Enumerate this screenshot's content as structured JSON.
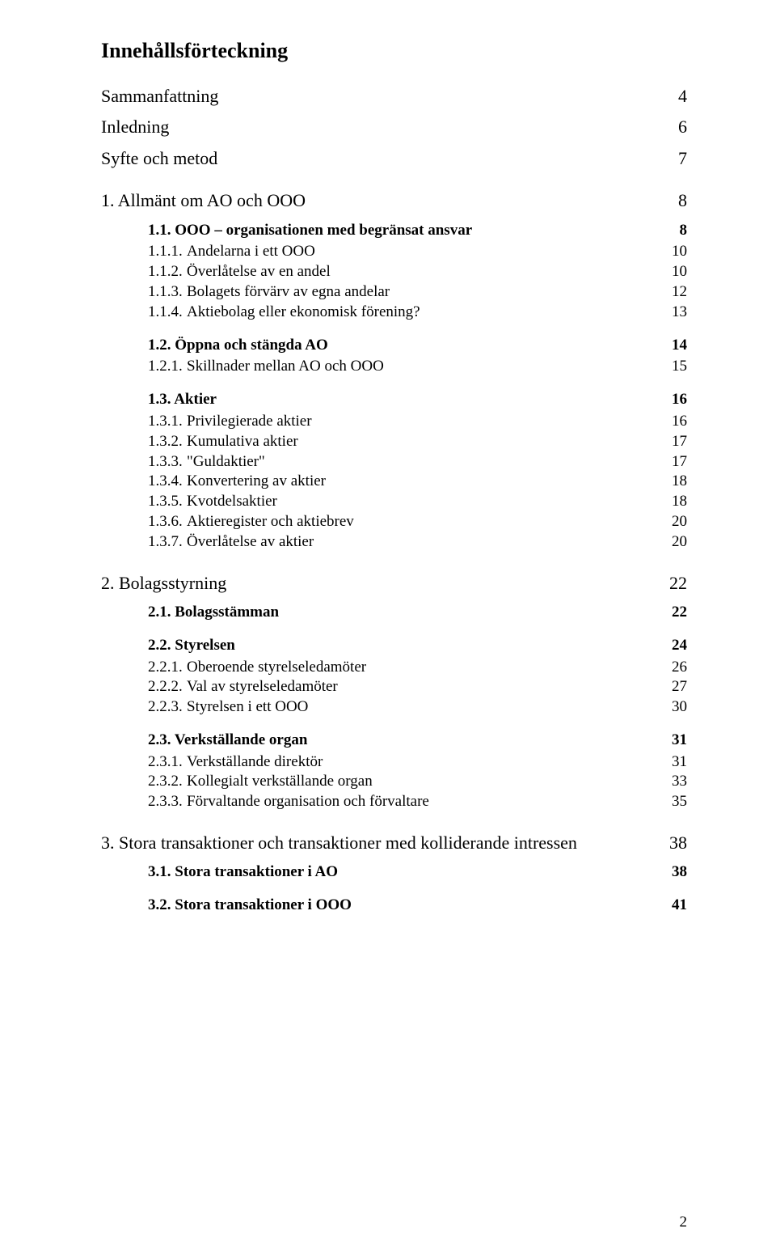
{
  "title": "Innehållsförteckning",
  "footer_page_number": "2",
  "toc": {
    "sammanfattning": {
      "label": "Sammanfattning",
      "page": "4"
    },
    "inledning": {
      "label": "Inledning",
      "page": "6"
    },
    "syfte": {
      "label": "Syfte och metod",
      "page": "7"
    },
    "s1": {
      "label": "1.  Allmänt om AO och OOO",
      "page": "8"
    },
    "s1_1": {
      "no": "1.1.",
      "text": "OOO – organisationen med begränsat ansvar",
      "page": "8",
      "bold": true
    },
    "s1_1_1": {
      "no": "1.1.1.",
      "text": "Andelarna i ett OOO",
      "page": "10"
    },
    "s1_1_2": {
      "no": "1.1.2.",
      "text": "Överlåtelse av en andel",
      "page": "10"
    },
    "s1_1_3": {
      "no": "1.1.3.",
      "text": "Bolagets förvärv av egna andelar",
      "page": "12"
    },
    "s1_1_4": {
      "no": "1.1.4.",
      "text": "Aktiebolag eller ekonomisk förening?",
      "page": "13"
    },
    "s1_2": {
      "no": "1.2.",
      "text": "Öppna och stängda AO",
      "page": "14",
      "bold": true
    },
    "s1_2_1": {
      "no": "1.2.1.",
      "text": "Skillnader mellan AO och OOO",
      "page": "15"
    },
    "s1_3": {
      "no": "1.3.",
      "text": "Aktier",
      "page": "16",
      "bold": true
    },
    "s1_3_1": {
      "no": "1.3.1.",
      "text": "Privilegierade aktier",
      "page": "16"
    },
    "s1_3_2": {
      "no": "1.3.2.",
      "text": "Kumulativa aktier",
      "page": "17"
    },
    "s1_3_3": {
      "no": "1.3.3.",
      "text": "\"Guldaktier\"",
      "page": "17"
    },
    "s1_3_4": {
      "no": "1.3.4.",
      "text": "Konvertering av aktier",
      "page": "18"
    },
    "s1_3_5": {
      "no": "1.3.5.",
      "text": "Kvotdelsaktier",
      "page": "18"
    },
    "s1_3_6": {
      "no": "1.3.6.",
      "text": "Aktieregister och aktiebrev",
      "page": "20"
    },
    "s1_3_7": {
      "no": "1.3.7.",
      "text": "Överlåtelse av aktier",
      "page": "20"
    },
    "s2": {
      "label": "2.  Bolagsstyrning",
      "page": "22"
    },
    "s2_1": {
      "no": "2.1.",
      "text": "Bolagsstämman",
      "page": "22",
      "bold": true
    },
    "s2_2": {
      "no": "2.2.",
      "text": "Styrelsen",
      "page": "24",
      "bold": true
    },
    "s2_2_1": {
      "no": "2.2.1.",
      "text": "Oberoende styrelseledamöter",
      "page": "26"
    },
    "s2_2_2": {
      "no": "2.2.2.",
      "text": "Val av styrelseledamöter",
      "page": "27"
    },
    "s2_2_3": {
      "no": "2.2.3.",
      "text": "Styrelsen i ett OOO",
      "page": "30"
    },
    "s2_3": {
      "no": "2.3.",
      "text": "Verkställande organ",
      "page": "31",
      "bold": true
    },
    "s2_3_1": {
      "no": "2.3.1.",
      "text": "Verkställande direktör",
      "page": "31"
    },
    "s2_3_2": {
      "no": "2.3.2.",
      "text": "Kollegialt verkställande organ",
      "page": "33"
    },
    "s2_3_3": {
      "no": "2.3.3.",
      "text": "Förvaltande organisation och förvaltare",
      "page": "35"
    },
    "s3": {
      "label": "3.  Stora transaktioner och transaktioner med kolliderande intressen",
      "page": "38"
    },
    "s3_1": {
      "no": "3.1.",
      "text": "Stora transaktioner i AO",
      "page": "38",
      "bold": true
    },
    "s3_2": {
      "no": "3.2.",
      "text": "Stora transaktioner i OOO",
      "page": "41",
      "bold": true
    }
  }
}
